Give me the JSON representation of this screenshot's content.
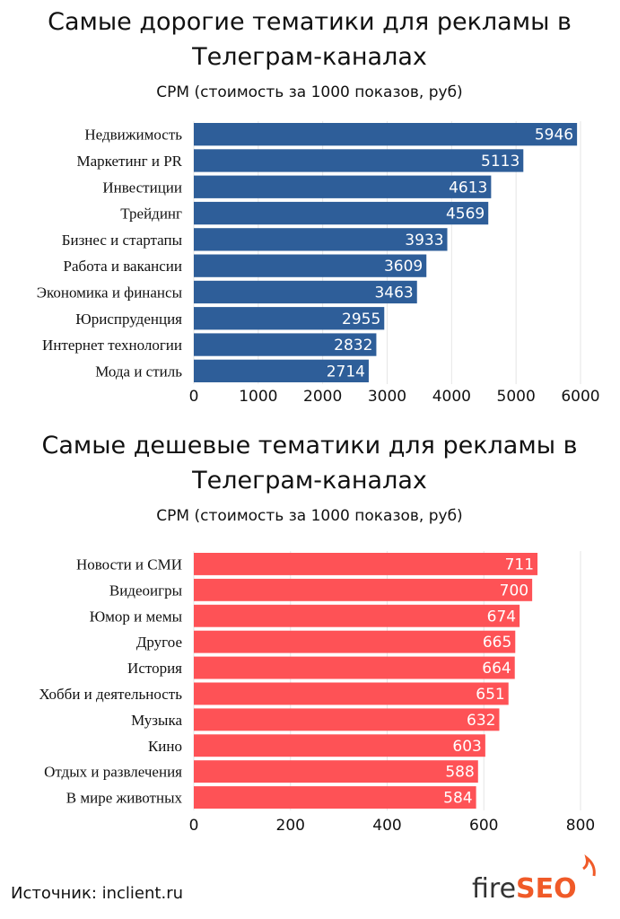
{
  "chart_data": [
    {
      "type": "bar",
      "orientation": "horizontal",
      "title": "Самые дорогие тематики для рекламы в Телеграм-каналах",
      "title_lines": [
        "Самые дорогие тематики для рекламы в",
        "Телеграм-каналах"
      ],
      "subtitle": "CPM (стоимость за 1000 показов, руб)",
      "categories": [
        "Недвижимость",
        "Маркетинг и PR",
        "Инвестиции",
        "Трейдинг",
        "Бизнес и стартапы",
        "Работа и вакансии",
        "Экономика и финансы",
        "Юриспруденция",
        "Интернет технологии",
        "Мода и стиль"
      ],
      "values": [
        5946,
        5113,
        4613,
        4569,
        3933,
        3609,
        3463,
        2955,
        2832,
        2714
      ],
      "xlim": [
        0,
        6000
      ],
      "xticks": [
        0,
        1000,
        2000,
        3000,
        4000,
        5000,
        6000
      ],
      "grid": true,
      "color": "#2e5e99"
    },
    {
      "type": "bar",
      "orientation": "horizontal",
      "title": "Самые дешевые тематики для рекламы в Телеграм-каналах",
      "title_lines": [
        "Самые дешевые тематики для рекламы в",
        "Телеграм-каналах"
      ],
      "subtitle": "CPM (стоимость за 1000 показов, руб)",
      "categories": [
        "Новости и СМИ",
        "Видеоигры",
        "Юмор и мемы",
        "Другое",
        "История",
        "Хобби и деятельность",
        "Музыка",
        "Кино",
        "Отдых и развлечения",
        "В мире животных"
      ],
      "values": [
        711,
        700,
        674,
        665,
        664,
        651,
        632,
        603,
        588,
        584
      ],
      "xlim": [
        0,
        800
      ],
      "xticks": [
        0,
        200,
        400,
        600,
        800
      ],
      "grid": true,
      "color": "#fe5256"
    }
  ],
  "footer": {
    "source": "Источник: inclient.ru",
    "logo": {
      "part1": "fire",
      "part2": "SEO",
      "color1": "#333333",
      "color2": "#f05a28"
    }
  }
}
